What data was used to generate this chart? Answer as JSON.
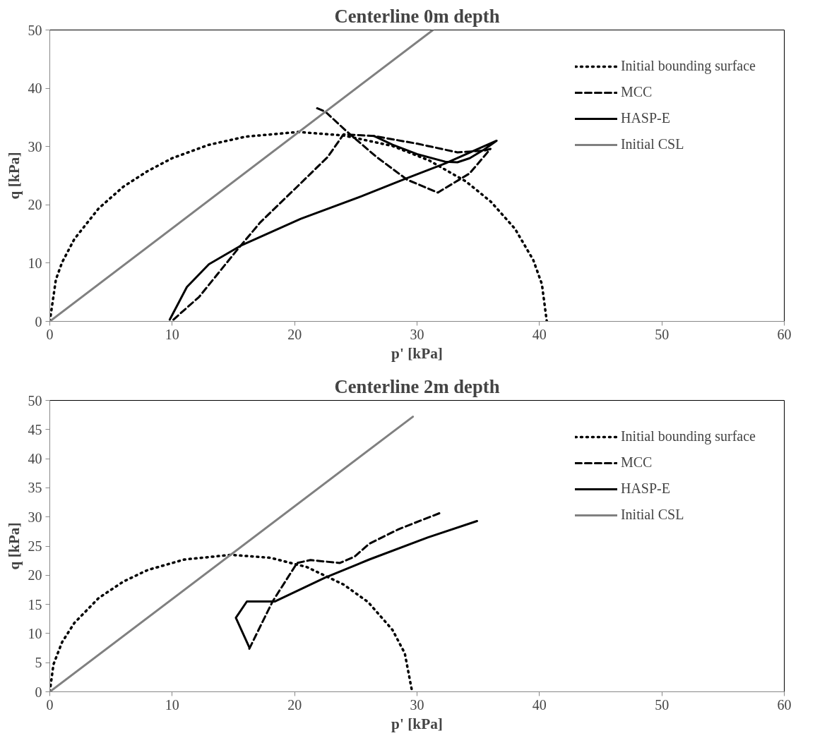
{
  "chart_data": [
    {
      "type": "line",
      "title": "Centerline 0m depth",
      "xlabel": "p' [kPa]",
      "ylabel": "q [kPa]",
      "xlim": [
        0,
        60
      ],
      "ylim": [
        0,
        50
      ],
      "xticks": [
        0,
        10,
        20,
        30,
        40,
        50,
        60
      ],
      "yticks": [
        0,
        10,
        20,
        30,
        40,
        50
      ],
      "legend": "top right",
      "series": [
        {
          "name": "Initial bounding surface",
          "color": "#000000",
          "line_style": "dotted",
          "x": [
            0,
            0.5,
            1,
            2,
            4,
            6,
            8,
            10,
            13,
            16,
            20.3,
            24,
            28,
            31,
            34,
            36,
            38,
            39.5,
            40.2,
            40.6
          ],
          "values": [
            0,
            7.2,
            10.1,
            14.1,
            19.4,
            23.1,
            25.8,
            28.0,
            30.3,
            31.7,
            32.5,
            31.9,
            30.1,
            27.6,
            24.0,
            20.6,
            15.9,
            10.5,
            6.4,
            0
          ]
        },
        {
          "name": "MCC",
          "color": "#000000",
          "line_style": "dashed",
          "x": [
            10.1,
            12.2,
            15.2,
            17.2,
            20.5,
            22.7,
            24,
            26.5,
            30,
            33.3,
            35.5,
            36,
            34.3,
            31.7,
            29.2,
            26.7,
            24.2,
            22.5,
            21.8
          ],
          "values": [
            0.3,
            4.2,
            12,
            17,
            23.7,
            28.2,
            32.1,
            31.8,
            30.5,
            29,
            29.3,
            29.6,
            25.4,
            22.1,
            24.3,
            28.2,
            32.7,
            36,
            36.6
          ]
        },
        {
          "name": "HASP-E",
          "color": "#000000",
          "line_style": "solid",
          "x": [
            9.8,
            11.2,
            13,
            15.7,
            20.5,
            25.5,
            29.2,
            32.3,
            36.5,
            35.5,
            34.3,
            33.3,
            32.3,
            30,
            28,
            26.5
          ],
          "values": [
            0.3,
            5.9,
            9.8,
            13.1,
            17.6,
            21.5,
            24.6,
            27.1,
            31,
            29.5,
            28,
            27.3,
            27.4,
            28.7,
            30.3,
            31.8
          ]
        },
        {
          "name": "Initial CSL",
          "color": "#808080",
          "line_style": "solid",
          "x": [
            0,
            31.3
          ],
          "values": [
            0,
            50
          ]
        }
      ]
    },
    {
      "type": "line",
      "title": "Centerline 2m depth",
      "xlabel": "p' [kPa]",
      "ylabel": "q [kPa]",
      "xlim": [
        0,
        60
      ],
      "ylim": [
        0,
        50
      ],
      "xticks": [
        0,
        10,
        20,
        30,
        40,
        50,
        60
      ],
      "yticks": [
        0,
        5,
        10,
        15,
        20,
        25,
        30,
        35,
        40,
        45,
        50
      ],
      "legend": "top right",
      "series": [
        {
          "name": "Initial bounding surface",
          "color": "#000000",
          "line_style": "dotted",
          "x": [
            0,
            0.3,
            1,
            2,
            4,
            6,
            8,
            11,
            14.8,
            18,
            21,
            24,
            26,
            28,
            29,
            29.6
          ],
          "values": [
            0,
            4.7,
            8.5,
            11.8,
            16.1,
            18.9,
            20.9,
            22.7,
            23.5,
            23,
            21.4,
            18.4,
            15.4,
            10.6,
            6.6,
            0
          ]
        },
        {
          "name": "MCC",
          "color": "#000000",
          "line_style": "dashed",
          "x": [
            16.3,
            18.2,
            20.2,
            21.3,
            23.7,
            24.9,
            26.1,
            28.5,
            31.9
          ],
          "values": [
            7.4,
            15.5,
            22.1,
            22.6,
            22.1,
            23.2,
            25.4,
            27.9,
            30.7
          ]
        },
        {
          "name": "HASP-E",
          "color": "#000000",
          "line_style": "solid",
          "x": [
            16.3,
            15.2,
            16.1,
            18.4,
            22.5,
            26.1,
            30.9,
            34.9
          ],
          "values": [
            7.6,
            12.7,
            15.5,
            15.5,
            19.6,
            22.7,
            26.5,
            29.3
          ]
        },
        {
          "name": "Initial CSL",
          "color": "#808080",
          "line_style": "solid",
          "x": [
            0,
            29.66
          ],
          "values": [
            0,
            47.2
          ]
        }
      ]
    }
  ]
}
